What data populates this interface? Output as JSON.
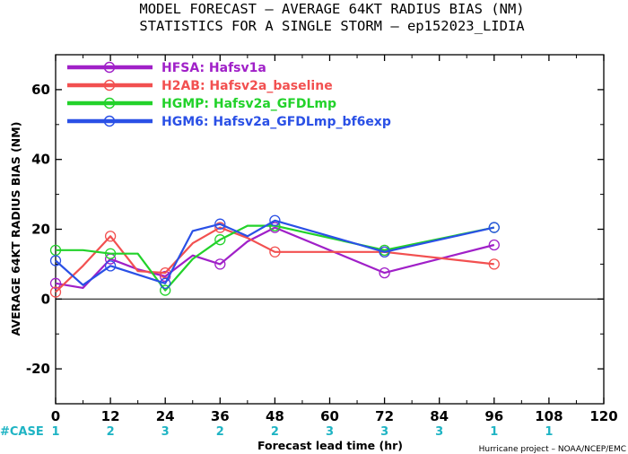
{
  "chart_data": {
    "type": "line",
    "title": "MODEL FORECAST – AVERAGE 64KT RADIUS BIAS (NM)",
    "subtitle": "STATISTICS FOR A SINGLE STORM – ep152023_LIDIA",
    "xlabel": "Forecast lead time (hr)",
    "ylabel": "AVERAGE 64KT RADIUS BIAS (NM)",
    "xlim": [
      0,
      120
    ],
    "ylim": [
      -30,
      70
    ],
    "x_ticks": [
      0,
      12,
      24,
      36,
      48,
      60,
      72,
      84,
      96,
      108,
      120
    ],
    "y_ticks": [
      -20,
      0,
      20,
      40,
      60
    ],
    "grid": false,
    "legend_position": "top-left",
    "case_label": "#CASE",
    "case_ticks": [
      0,
      12,
      24,
      36,
      48,
      60,
      72,
      84,
      96,
      108
    ],
    "case_counts": [
      1,
      2,
      3,
      2,
      2,
      3,
      3,
      3,
      1,
      1
    ],
    "credit": "Hurricane project – NOAA/NCEP/EMC",
    "series": [
      {
        "name": "HFSA:  Hafsv1a",
        "color": "#a020c8",
        "x": [
          0,
          6,
          12,
          18,
          24,
          30,
          36,
          42,
          48,
          72,
          96
        ],
        "y": [
          4.5,
          3.2,
          11.5,
          8.5,
          6.5,
          12.5,
          10.0,
          16.5,
          20.5,
          7.5,
          15.5
        ]
      },
      {
        "name": "H2AB:  Hafsv2a_baseline",
        "color": "#f25050",
        "x": [
          0,
          6,
          12,
          18,
          24,
          30,
          36,
          42,
          48,
          72,
          96
        ],
        "y": [
          2.0,
          9.5,
          18.0,
          8.0,
          7.5,
          16.0,
          20.5,
          17.5,
          13.5,
          13.5,
          10.0
        ]
      },
      {
        "name": "HGMP:  Hafsv2a_GFDLmp",
        "color": "#22d22a",
        "x": [
          0,
          6,
          12,
          18,
          24,
          30,
          36,
          42,
          48,
          72,
          96
        ],
        "y": [
          14.0,
          14.0,
          13.0,
          13.0,
          2.5,
          11.5,
          17.0,
          21.0,
          21.0,
          14.0,
          20.5
        ]
      },
      {
        "name": "HGM6:  Hafsv2a_GFDLmp_bf6exp",
        "color": "#2a50e6",
        "x": [
          0,
          6,
          12,
          18,
          24,
          30,
          36,
          42,
          48,
          72,
          96
        ],
        "y": [
          11.0,
          4.0,
          9.5,
          7.0,
          4.5,
          19.5,
          21.5,
          18.0,
          22.5,
          13.5,
          20.5
        ]
      }
    ]
  }
}
